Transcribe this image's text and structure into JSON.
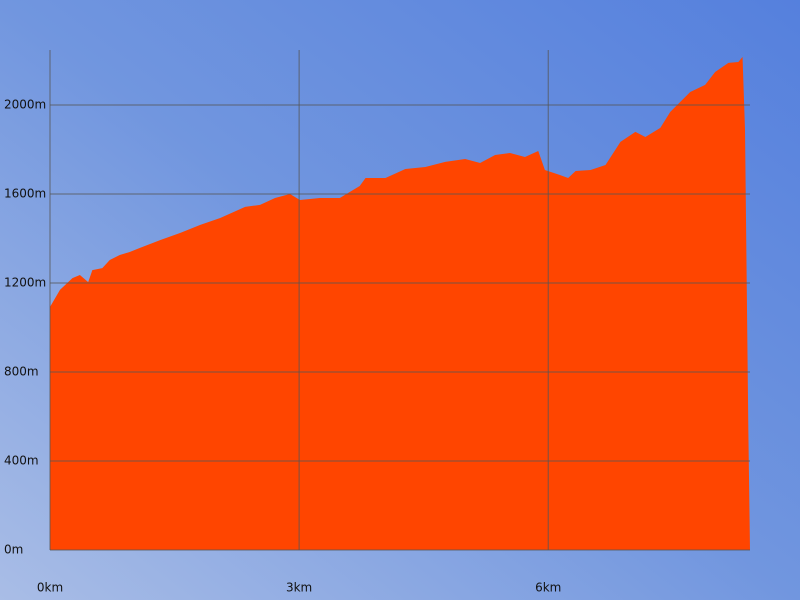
{
  "chart_data": {
    "type": "area",
    "color": "#ff4500",
    "grid": true,
    "x": [
      0,
      0.12,
      0.27,
      0.36,
      0.46,
      0.51,
      0.63,
      0.72,
      0.84,
      0.96,
      1.08,
      1.33,
      1.57,
      1.81,
      2.05,
      2.35,
      2.53,
      2.71,
      2.89,
      3.01,
      3.25,
      3.49,
      3.73,
      3.8,
      4.04,
      4.28,
      4.52,
      4.76,
      5.0,
      5.18,
      5.36,
      5.54,
      5.72,
      5.88,
      5.96,
      6.14,
      6.24,
      6.33,
      6.51,
      6.69,
      6.87,
      7.05,
      7.17,
      7.35,
      7.47,
      7.71,
      7.89,
      8.01,
      8.17,
      8.29,
      8.34,
      8.37,
      8.41,
      8.43
    ],
    "values": [
      1092,
      1169,
      1222,
      1236,
      1204,
      1258,
      1267,
      1303,
      1326,
      1339,
      1357,
      1393,
      1425,
      1461,
      1492,
      1542,
      1551,
      1582,
      1600,
      1573,
      1582,
      1582,
      1636,
      1672,
      1672,
      1712,
      1721,
      1744,
      1757,
      1739,
      1775,
      1784,
      1766,
      1793,
      1708,
      1685,
      1672,
      1703,
      1708,
      1730,
      1834,
      1879,
      1856,
      1897,
      1969,
      2058,
      2090,
      2148,
      2189,
      2193,
      2216,
      1888,
      539,
      0
    ],
    "xlim": [
      0,
      8.43
    ],
    "ylim": [
      0,
      2247
    ],
    "xticks": [
      {
        "value": 0,
        "label": "0km"
      },
      {
        "value": 3,
        "label": "3km"
      },
      {
        "value": 6,
        "label": "6km"
      }
    ],
    "yticks": [
      {
        "value": 0,
        "label": "0m"
      },
      {
        "value": 400,
        "label": "400m"
      },
      {
        "value": 800,
        "label": "800m"
      },
      {
        "value": 1200,
        "label": "1200m"
      },
      {
        "value": 1600,
        "label": "1600m"
      },
      {
        "value": 2000,
        "label": "2000m"
      }
    ]
  }
}
